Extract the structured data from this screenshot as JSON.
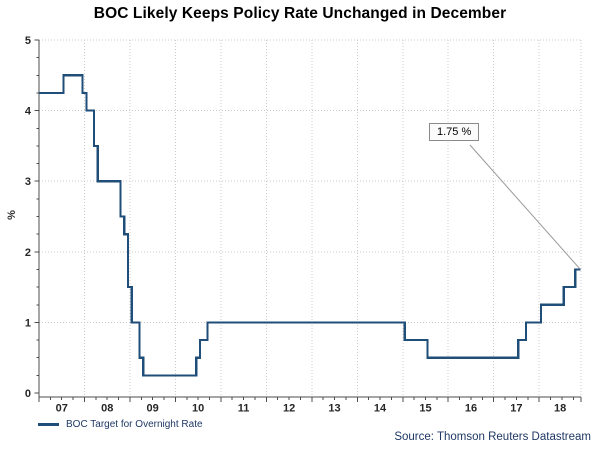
{
  "title": "BOC Likely Keeps Policy Rate Unchanged in December",
  "ylabel": "%",
  "legend": {
    "label": "BOC Target for Overnight Rate"
  },
  "source": "Source: Thomson Reuters Datastream",
  "annotation": {
    "label": "1.75 %"
  },
  "colors": {
    "line": "#1F4E79",
    "axis": "#4d4d4d",
    "grid": "#cbcbcb",
    "leader": "#999999",
    "navy_text": "#1F3864"
  },
  "chart_data": {
    "type": "line",
    "style": "step-after",
    "title": "BOC Likely Keeps Policy Rate Unchanged in December",
    "xlabel": "",
    "ylabel": "%",
    "ylim": [
      0,
      5
    ],
    "xlim": [
      2007.0,
      2018.92
    ],
    "grid": "dotted",
    "legend_position": "bottom-left",
    "y_ticks": [
      0,
      1,
      2,
      3,
      4,
      5
    ],
    "x_tick_labels": [
      "07",
      "08",
      "09",
      "10",
      "11",
      "12",
      "13",
      "14",
      "15",
      "16",
      "17",
      "18"
    ],
    "series": [
      {
        "name": "BOC Target for Overnight Rate",
        "points": [
          [
            "2007-01",
            4.25
          ],
          [
            "2007-07",
            4.5
          ],
          [
            "2007-12",
            4.25
          ],
          [
            "2008-01",
            4.0
          ],
          [
            "2008-03",
            3.5
          ],
          [
            "2008-04",
            3.0
          ],
          [
            "2008-10",
            2.5
          ],
          [
            "2008-11",
            2.25
          ],
          [
            "2008-12",
            1.5
          ],
          [
            "2009-01",
            1.0
          ],
          [
            "2009-03",
            0.5
          ],
          [
            "2009-04",
            0.25
          ],
          [
            "2010-06",
            0.5
          ],
          [
            "2010-07",
            0.75
          ],
          [
            "2010-09",
            1.0
          ],
          [
            "2015-01",
            0.75
          ],
          [
            "2015-07",
            0.5
          ],
          [
            "2017-07",
            0.75
          ],
          [
            "2017-09",
            1.0
          ],
          [
            "2018-01",
            1.25
          ],
          [
            "2018-07",
            1.5
          ],
          [
            "2018-10",
            1.75
          ]
        ]
      }
    ],
    "annotation": {
      "label": "1.75 %",
      "value": 1.75
    }
  }
}
